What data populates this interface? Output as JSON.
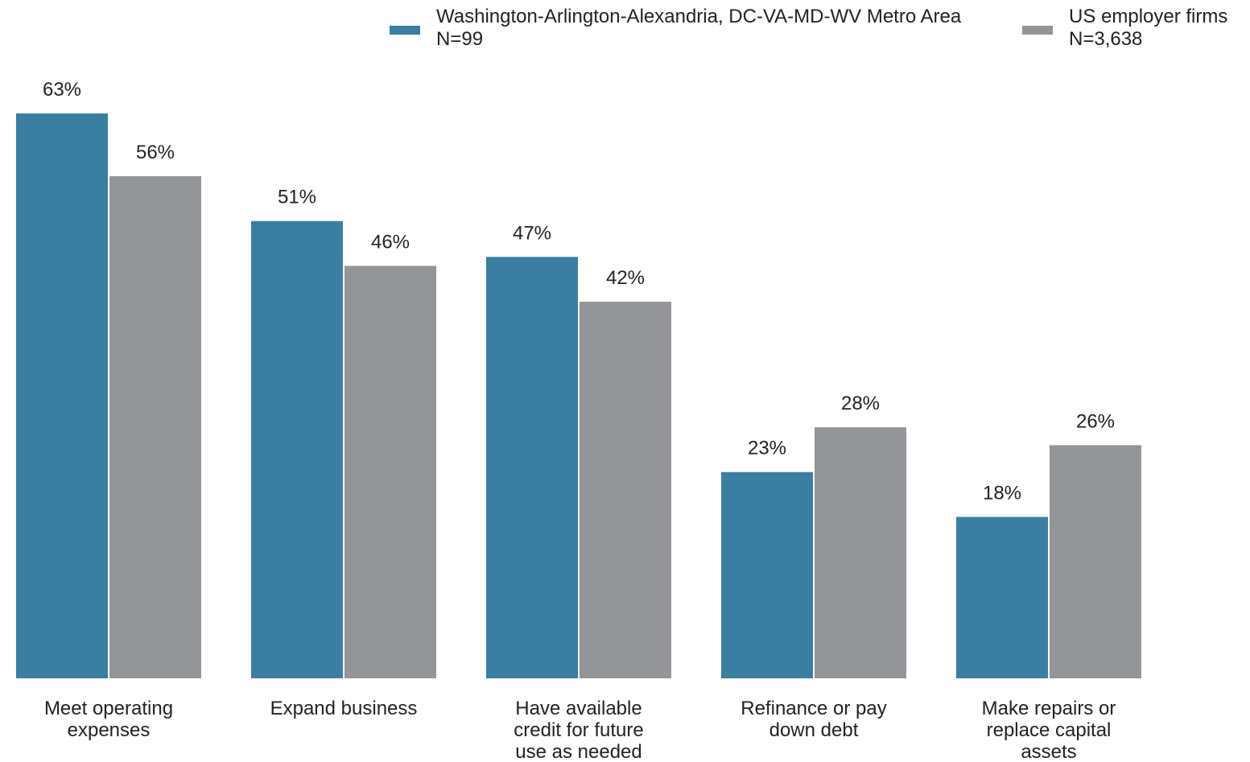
{
  "chart_data": {
    "type": "bar",
    "categories": [
      "Meet operating expenses",
      "Expand business",
      "Have available credit for future use as needed",
      "Refinance or pay down debt",
      "Make repairs or replace capital assets"
    ],
    "series": [
      {
        "name": "Washington-Arlington-Alexandria, DC-VA-MD-WV Metro Area",
        "n_label": "N=99",
        "color": "#3a7ea1",
        "values": [
          63,
          51,
          47,
          23,
          18
        ],
        "value_labels": [
          "63%",
          "51%",
          "47%",
          "23%",
          "18%"
        ]
      },
      {
        "name": "US employer firms",
        "n_label": "N=3,638",
        "color": "#939598",
        "values": [
          56,
          46,
          42,
          28,
          26
        ],
        "value_labels": [
          "56%",
          "46%",
          "42%",
          "28%",
          "26%"
        ]
      }
    ],
    "ylim": [
      0,
      70
    ]
  }
}
